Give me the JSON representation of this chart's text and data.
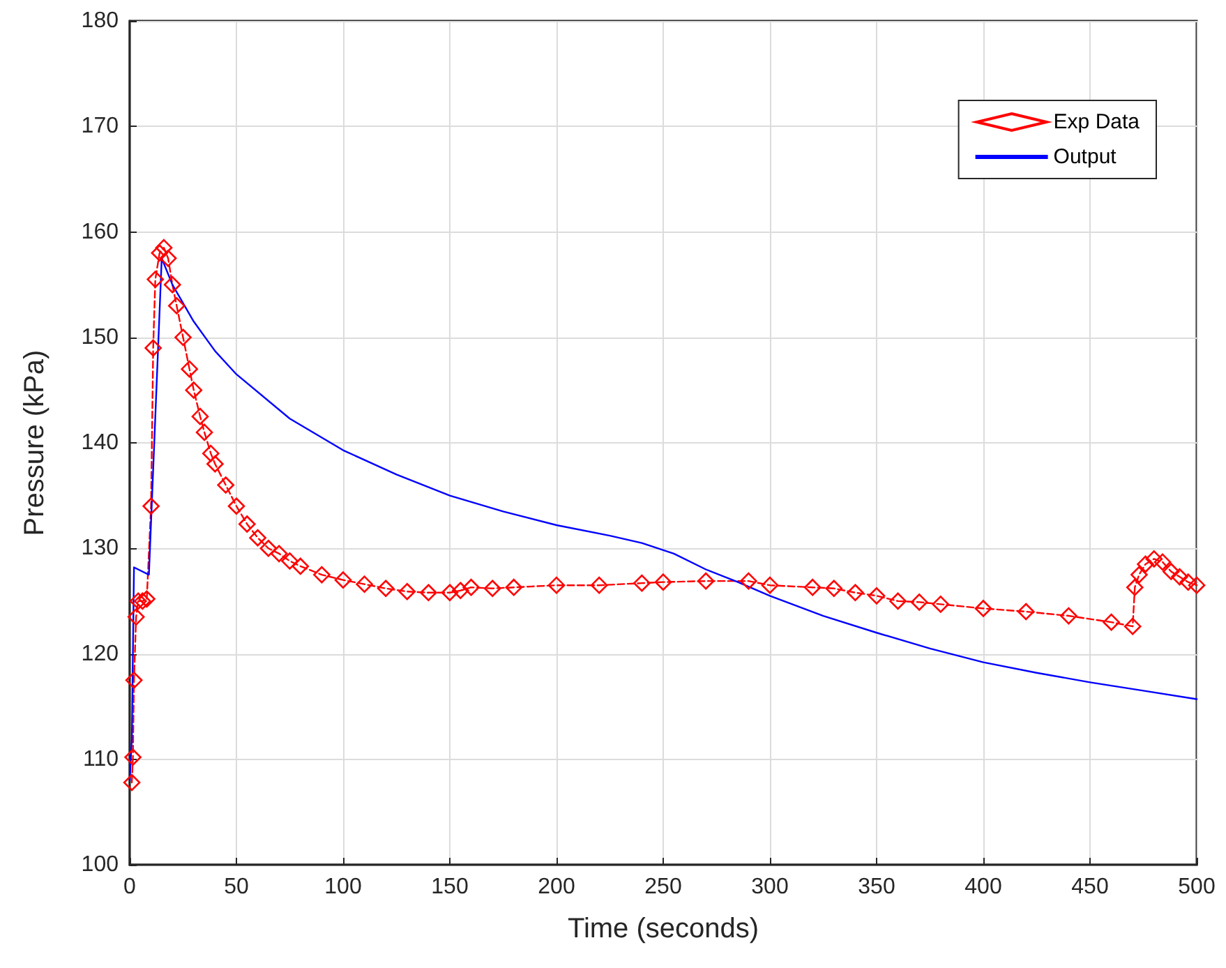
{
  "chart_data": {
    "type": "line",
    "xlabel": "Time (seconds)",
    "ylabel": "Pressure (kPa)",
    "xlim": [
      0,
      500
    ],
    "ylim": [
      100,
      180
    ],
    "xticks": [
      0,
      50,
      100,
      150,
      200,
      250,
      300,
      350,
      400,
      450,
      500
    ],
    "yticks": [
      100,
      110,
      120,
      130,
      140,
      150,
      160,
      170,
      180
    ],
    "grid": true,
    "legend": "top right",
    "series": [
      {
        "name": "Exp Data",
        "color": "#ff0000",
        "marker": "diamond",
        "line_style": "dashed",
        "x": [
          1,
          1.5,
          2,
          3,
          4,
          6,
          8,
          10,
          11,
          12,
          14,
          16,
          18,
          20,
          22,
          25,
          28,
          30,
          33,
          35,
          38,
          40,
          45,
          50,
          55,
          60,
          65,
          70,
          75,
          80,
          90,
          100,
          110,
          120,
          130,
          140,
          150,
          155,
          160,
          170,
          180,
          200,
          220,
          240,
          250,
          270,
          290,
          300,
          320,
          330,
          340,
          350,
          360,
          370,
          380,
          400,
          420,
          440,
          460,
          470,
          471,
          473,
          476,
          480,
          484,
          488,
          492,
          496,
          500
        ],
        "values": [
          107.8,
          110.2,
          117.5,
          123.5,
          125,
          125,
          125.2,
          134,
          149,
          155.5,
          158,
          158.5,
          157.5,
          155,
          153,
          150,
          147,
          145,
          142.5,
          141,
          139,
          138,
          136,
          134,
          132.3,
          131,
          130,
          129.5,
          128.8,
          128.3,
          127.5,
          127,
          126.6,
          126.2,
          125.9,
          125.8,
          125.8,
          126,
          126.3,
          126.2,
          126.3,
          126.5,
          126.5,
          126.7,
          126.8,
          126.9,
          126.9,
          126.5,
          126.3,
          126.2,
          125.8,
          125.5,
          125,
          124.9,
          124.7,
          124.3,
          124,
          123.6,
          123,
          122.6,
          126.3,
          127.5,
          128.5,
          129,
          128.7,
          127.8,
          127.3,
          126.8,
          126.5
        ]
      },
      {
        "name": "Output",
        "color": "#0000ff",
        "marker": "none",
        "line_style": "solid",
        "x": [
          0,
          1,
          2,
          9,
          15,
          20,
          30,
          40,
          50,
          75,
          100,
          125,
          150,
          175,
          200,
          225,
          240,
          255,
          270,
          285,
          300,
          325,
          350,
          375,
          400,
          425,
          450,
          475,
          500
        ],
        "values": [
          108,
          112,
          128.2,
          127.5,
          157.5,
          155,
          151.5,
          148.7,
          146.5,
          142.3,
          139.3,
          137,
          135,
          133.5,
          132.2,
          131.2,
          130.5,
          129.5,
          128,
          126.8,
          125.5,
          123.6,
          122,
          120.5,
          119.2,
          118.2,
          117.3,
          116.5,
          115.7
        ]
      }
    ]
  }
}
